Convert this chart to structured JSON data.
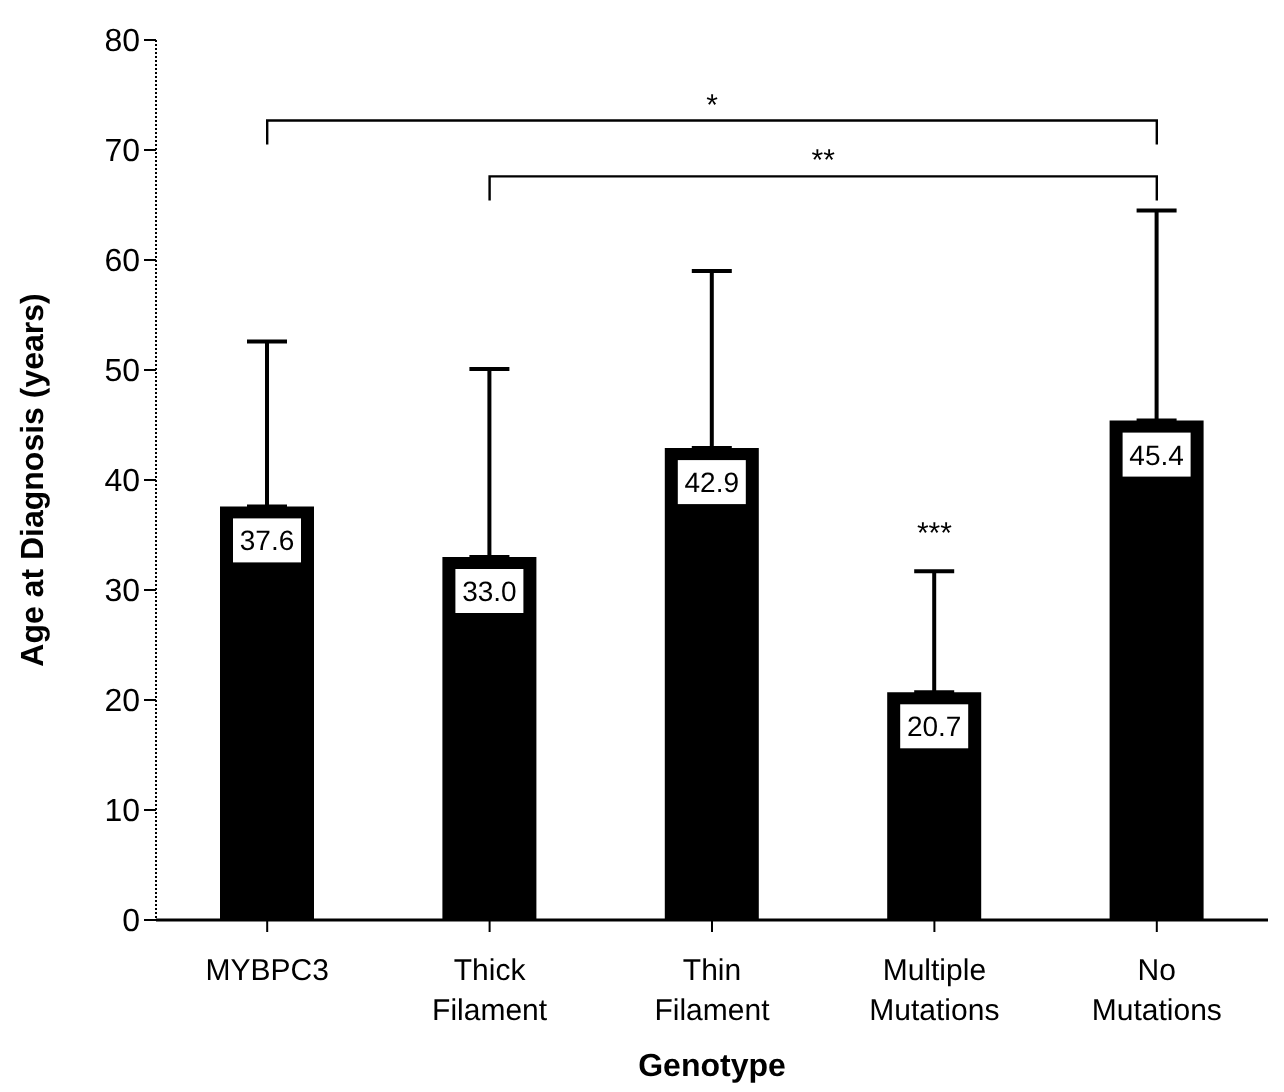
{
  "chart_data": {
    "type": "bar",
    "xlabel": "Genotype",
    "ylabel": "Age at Diagnosis (years)",
    "categories": [
      "MYBPC3",
      "Thick Filament",
      "Thin Filament",
      "Multiple Mutations",
      "No Mutations"
    ],
    "values": [
      37.6,
      33.0,
      42.9,
      20.7,
      45.4
    ],
    "errors": [
      [
        37.6,
        52.6
      ],
      [
        33.0,
        50.1
      ],
      [
        42.9,
        59.0
      ],
      [
        20.7,
        31.7
      ],
      [
        45.4,
        64.5
      ]
    ],
    "color": "#000000",
    "value_labels": [
      "37.6",
      "33.0",
      "42.9",
      "20.7",
      "45.4"
    ],
    "ylim": [
      0,
      80
    ],
    "yticks": [
      0,
      10,
      20,
      30,
      40,
      50,
      60,
      70,
      80
    ],
    "grid": false,
    "legend": false,
    "annotations": [
      "*",
      "**",
      "***"
    ]
  }
}
